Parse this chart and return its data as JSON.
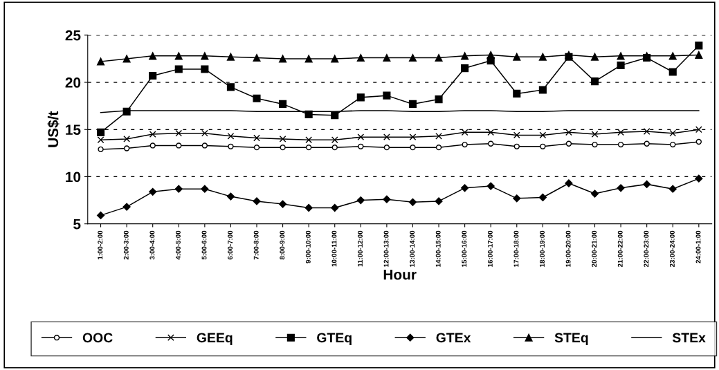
{
  "chart_data": {
    "type": "line",
    "xlabel": "Hour",
    "ylabel": "US$/t",
    "categories": [
      "1:00-2:00",
      "2:00-3:00",
      "3:00-4:00",
      "4:00-5:00",
      "5:00-6:00",
      "6:00-7:00",
      "7:00-8:00",
      "8:00-9:00",
      "9:00-10:00",
      "10:00-11:00",
      "11:00-12:00",
      "12:00-13:00",
      "13:00-14:00",
      "14:00-15:00",
      "15:00-16:00",
      "16:00-17:00",
      "17:00-18:00",
      "18:00-19:00",
      "19:00-20:00",
      "20:00-21:00",
      "21:00-22:00",
      "22:00-23:00",
      "23:00-24:00",
      "24:00-1:00"
    ],
    "series": [
      {
        "name": "OOC",
        "color": "#000000",
        "marker": "circle",
        "values": [
          12.9,
          13.0,
          13.3,
          13.3,
          13.3,
          13.2,
          13.1,
          13.1,
          13.1,
          13.1,
          13.2,
          13.1,
          13.1,
          13.1,
          13.4,
          13.5,
          13.2,
          13.2,
          13.5,
          13.4,
          13.4,
          13.5,
          13.4,
          13.7
        ]
      },
      {
        "name": "GEEq",
        "color": "#000000",
        "marker": "cross",
        "values": [
          13.9,
          14.0,
          14.5,
          14.6,
          14.6,
          14.3,
          14.1,
          14.0,
          13.9,
          13.9,
          14.2,
          14.2,
          14.2,
          14.3,
          14.7,
          14.7,
          14.4,
          14.4,
          14.7,
          14.5,
          14.7,
          14.8,
          14.6,
          15.0
        ]
      },
      {
        "name": "GTEq",
        "color": "#000000",
        "marker": "square",
        "values": [
          14.7,
          16.9,
          20.7,
          21.4,
          21.4,
          19.5,
          18.3,
          17.7,
          16.6,
          16.5,
          18.4,
          18.6,
          17.7,
          18.2,
          21.5,
          22.3,
          18.8,
          19.2,
          22.7,
          20.1,
          21.8,
          22.6,
          21.1,
          23.9
        ]
      },
      {
        "name": "GTEx",
        "color": "#000000",
        "marker": "diamond",
        "values": [
          5.9,
          6.8,
          8.4,
          8.7,
          8.7,
          7.9,
          7.4,
          7.1,
          6.7,
          6.7,
          7.5,
          7.6,
          7.3,
          7.4,
          8.8,
          9.0,
          7.7,
          7.8,
          9.3,
          8.2,
          8.8,
          9.2,
          8.7,
          9.8
        ]
      },
      {
        "name": "STEq",
        "color": "#000000",
        "marker": "triangle",
        "values": [
          22.2,
          22.5,
          22.8,
          22.8,
          22.8,
          22.7,
          22.6,
          22.5,
          22.5,
          22.5,
          22.6,
          22.6,
          22.6,
          22.6,
          22.8,
          22.9,
          22.7,
          22.7,
          22.9,
          22.7,
          22.8,
          22.8,
          22.8,
          22.9
        ]
      },
      {
        "name": "STEx",
        "color": "#000000",
        "marker": "none",
        "values": [
          16.8,
          17.0,
          17.0,
          17.0,
          17.0,
          17.0,
          16.9,
          16.9,
          16.9,
          16.9,
          17.0,
          17.0,
          16.9,
          16.9,
          17.0,
          17.0,
          16.9,
          16.9,
          17.0,
          17.0,
          17.0,
          17.0,
          17.0,
          17.0
        ]
      }
    ],
    "ylim": [
      5,
      25
    ],
    "yticks": [
      5,
      10,
      15,
      20,
      25
    ],
    "grid": "y",
    "legend": "bottom",
    "line_style": "solid"
  }
}
